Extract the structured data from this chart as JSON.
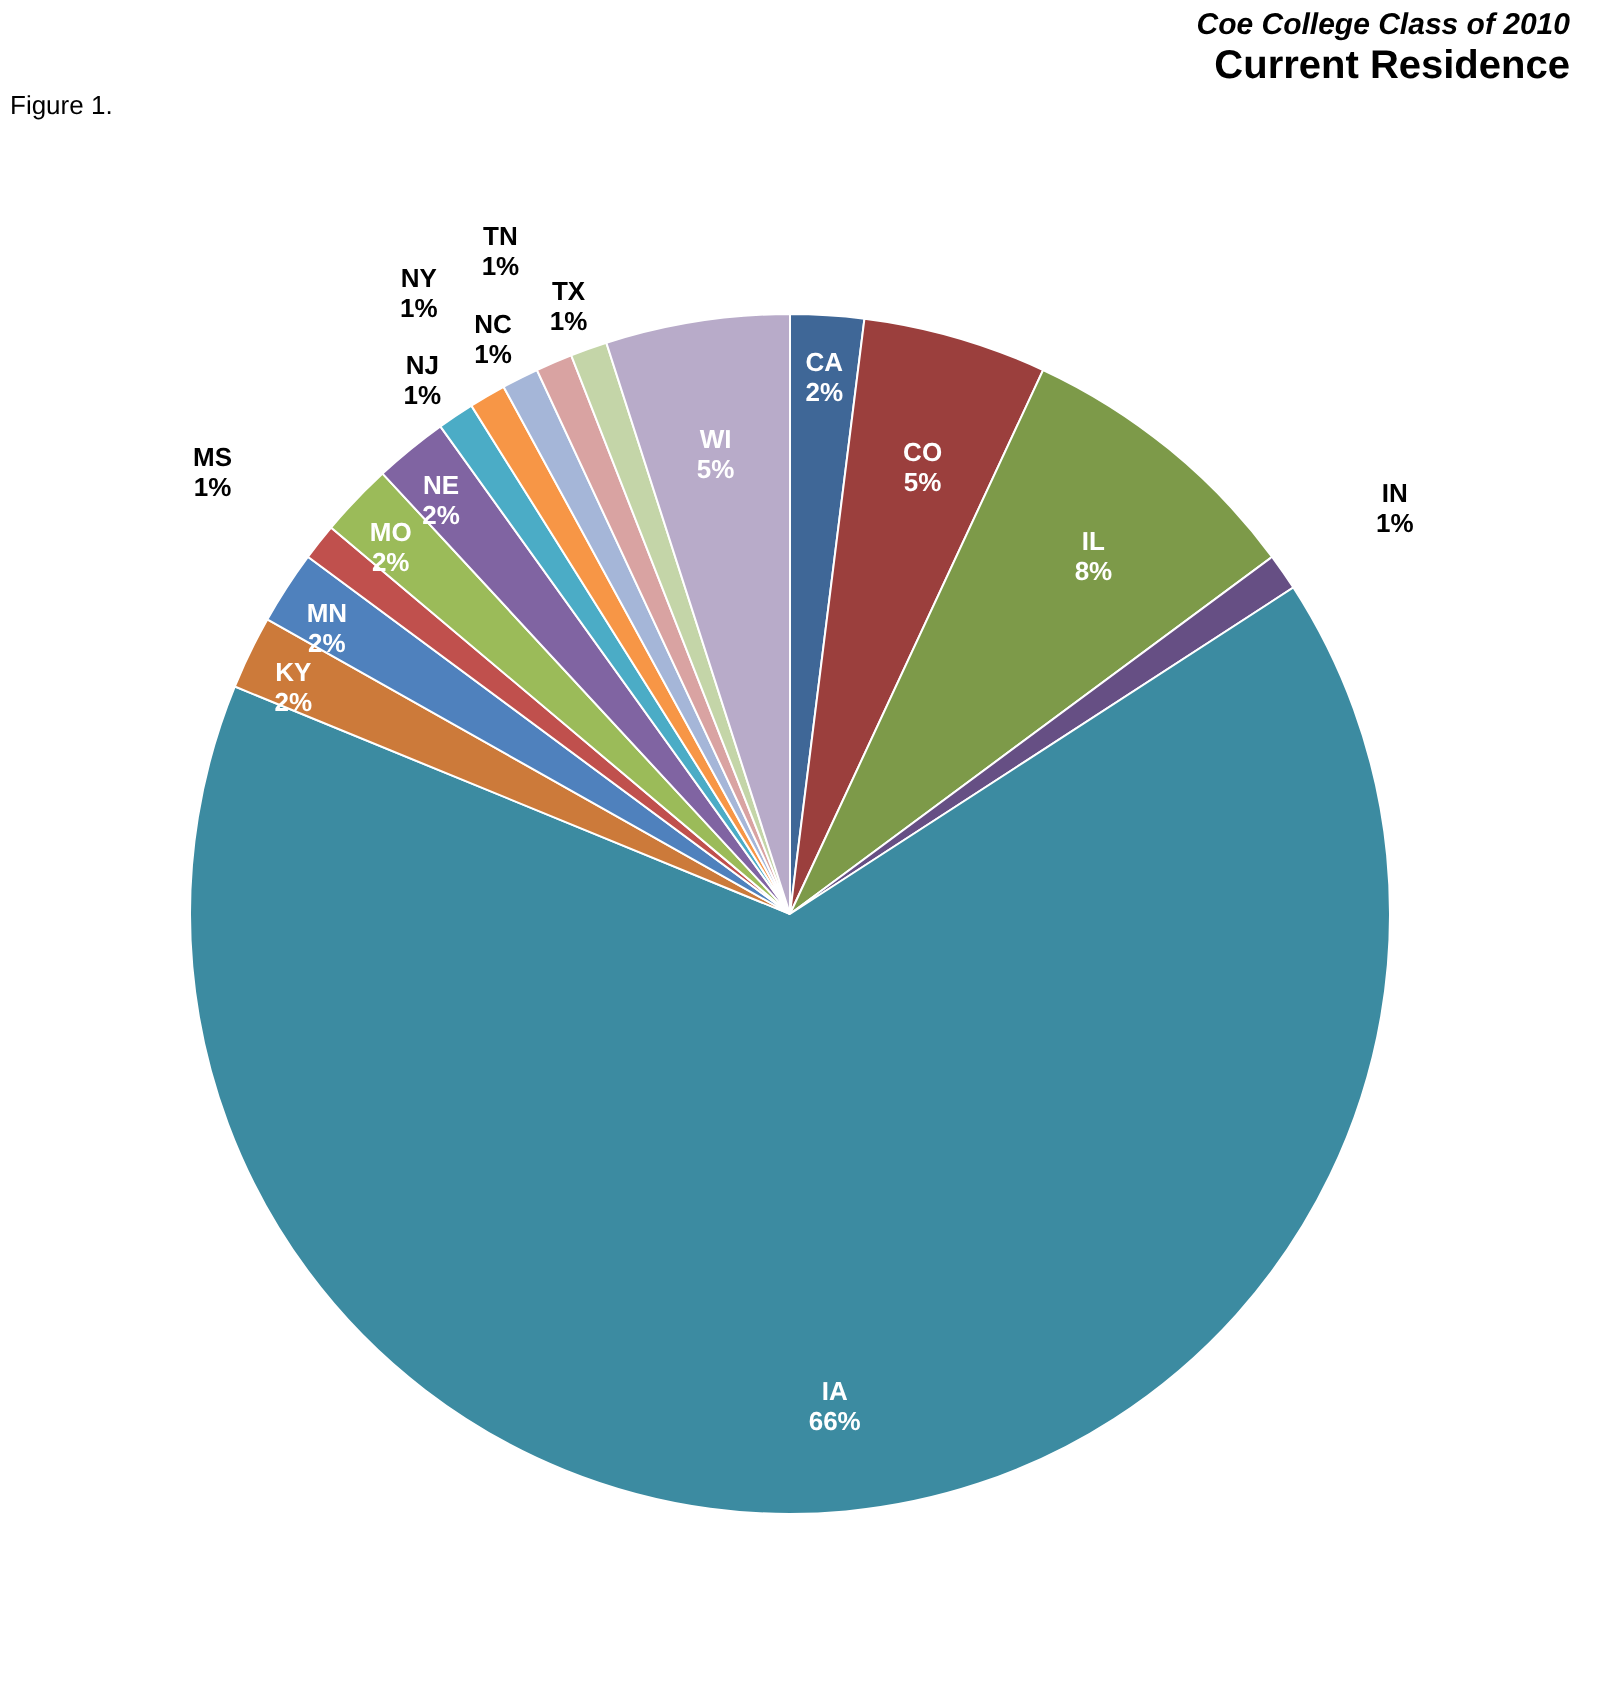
{
  "chart_data": {
    "type": "pie",
    "title": "Coe College Class of 2010",
    "subtitle": "Current Residence",
    "annotations": [
      "Figure 1."
    ],
    "categories": [
      "CA",
      "CO",
      "IL",
      "IN",
      "IA",
      "KY",
      "MN",
      "MS",
      "MO",
      "NE",
      "NJ",
      "NY",
      "NC",
      "TN",
      "TX",
      "WI"
    ],
    "values": [
      2,
      5,
      8,
      1,
      66,
      2,
      2,
      1,
      2,
      2,
      1,
      1,
      1,
      1,
      1,
      5
    ],
    "value_labels": [
      "2%",
      "5%",
      "8%",
      "1%",
      "66%",
      "2%",
      "2%",
      "1%",
      "2%",
      "2%",
      "1%",
      "1%",
      "1%",
      "1%",
      "1%",
      "5%"
    ],
    "colors": [
      "#3f6797",
      "#9b3f3d",
      "#7d9a49",
      "#664f84",
      "#3c8ba1",
      "#cc7a3a",
      "#4f81bd",
      "#c0504d",
      "#9bbb59",
      "#8064a2",
      "#4bacc6",
      "#f79646",
      "#a5b6d8",
      "#d9a3a2",
      "#c4d5a8",
      "#b8abc9"
    ],
    "legend": false
  }
}
